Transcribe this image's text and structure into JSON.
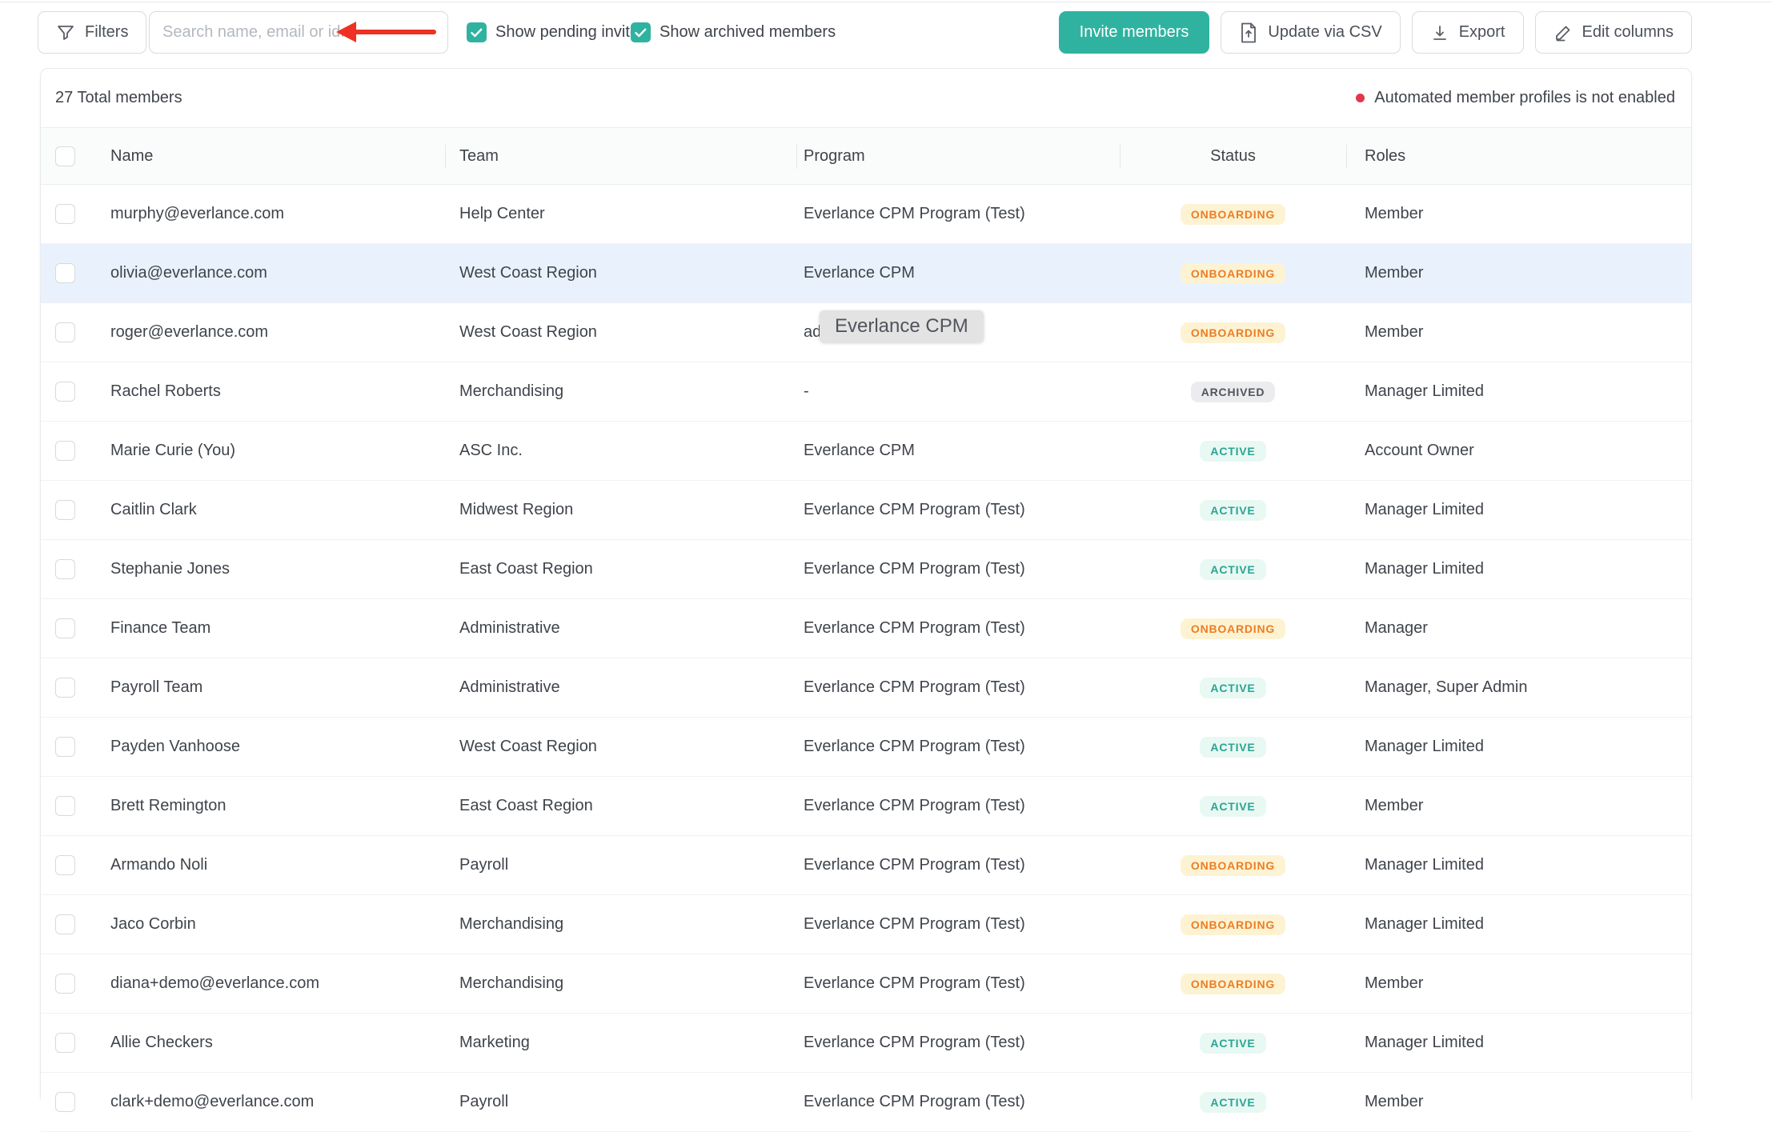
{
  "toolbar": {
    "filters_label": "Filters",
    "search_placeholder": "Search name, email or id...",
    "checkboxes": [
      {
        "label": "Show pending invites",
        "checked": true
      },
      {
        "label": "Show archived members",
        "checked": true
      }
    ],
    "invite_label": "Invite members",
    "update_csv_label": "Update via CSV",
    "export_label": "Export",
    "edit_columns_label": "Edit columns"
  },
  "summary": {
    "total_label": "27 Total members",
    "notice_text": "Automated member profiles is not enabled"
  },
  "tooltip": {
    "text": "Everlance CPM"
  },
  "table": {
    "columns": [
      "Name",
      "Team",
      "Program",
      "Status",
      "Roles"
    ],
    "rows": [
      {
        "name": "murphy@everlance.com",
        "team": "Help Center",
        "program": "Everlance CPM Program (Test)",
        "status": "ONBOARDING",
        "status_type": "onboarding",
        "roles": "Member",
        "highlighted": false
      },
      {
        "name": "olivia@everlance.com",
        "team": "West Coast Region",
        "program": "Everlance CPM",
        "status": "ONBOARDING",
        "status_type": "onboarding",
        "roles": "Member",
        "highlighted": true
      },
      {
        "name": "roger@everlance.com",
        "team": "West Coast Region",
        "program": "adeM",
        "status": "ONBOARDING",
        "status_type": "onboarding",
        "roles": "Member",
        "highlighted": false
      },
      {
        "name": "Rachel Roberts",
        "team": "Merchandising",
        "program": "-",
        "status": "ARCHIVED",
        "status_type": "archived",
        "roles": "Manager Limited",
        "highlighted": false
      },
      {
        "name": "Marie Curie (You)",
        "team": "ASC Inc.",
        "program": "Everlance CPM",
        "status": "ACTIVE",
        "status_type": "active",
        "roles": "Account Owner",
        "highlighted": false
      },
      {
        "name": "Caitlin Clark",
        "team": "Midwest Region",
        "program": "Everlance CPM Program (Test)",
        "status": "ACTIVE",
        "status_type": "active",
        "roles": "Manager Limited",
        "highlighted": false
      },
      {
        "name": "Stephanie Jones",
        "team": "East Coast Region",
        "program": "Everlance CPM Program (Test)",
        "status": "ACTIVE",
        "status_type": "active",
        "roles": "Manager Limited",
        "highlighted": false
      },
      {
        "name": "Finance Team",
        "team": "Administrative",
        "program": "Everlance CPM Program (Test)",
        "status": "ONBOARDING",
        "status_type": "onboarding",
        "roles": "Manager",
        "highlighted": false
      },
      {
        "name": "Payroll Team",
        "team": "Administrative",
        "program": "Everlance CPM Program (Test)",
        "status": "ACTIVE",
        "status_type": "active",
        "roles": "Manager, Super Admin",
        "highlighted": false
      },
      {
        "name": "Payden Vanhoose",
        "team": "West Coast Region",
        "program": "Everlance CPM Program (Test)",
        "status": "ACTIVE",
        "status_type": "active",
        "roles": "Manager Limited",
        "highlighted": false
      },
      {
        "name": "Brett Remington",
        "team": "East Coast Region",
        "program": "Everlance CPM Program (Test)",
        "status": "ACTIVE",
        "status_type": "active",
        "roles": "Member",
        "highlighted": false
      },
      {
        "name": "Armando Noli",
        "team": "Payroll",
        "program": "Everlance CPM Program (Test)",
        "status": "ONBOARDING",
        "status_type": "onboarding",
        "roles": "Manager Limited",
        "highlighted": false
      },
      {
        "name": "Jaco Corbin",
        "team": "Merchandising",
        "program": "Everlance CPM Program (Test)",
        "status": "ONBOARDING",
        "status_type": "onboarding",
        "roles": "Manager Limited",
        "highlighted": false
      },
      {
        "name": "diana+demo@everlance.com",
        "team": "Merchandising",
        "program": "Everlance CPM Program (Test)",
        "status": "ONBOARDING",
        "status_type": "onboarding",
        "roles": "Member",
        "highlighted": false
      },
      {
        "name": "Allie Checkers",
        "team": "Marketing",
        "program": "Everlance CPM Program (Test)",
        "status": "ACTIVE",
        "status_type": "active",
        "roles": "Manager Limited",
        "highlighted": false
      },
      {
        "name": "clark+demo@everlance.com",
        "team": "Payroll",
        "program": "Everlance CPM Program (Test)",
        "status": "ACTIVE",
        "status_type": "active",
        "roles": "Member",
        "highlighted": false
      }
    ]
  },
  "colors": {
    "accent_teal": "#2fb3a0",
    "arrow_red": "#ee3124",
    "notice_dot_red": "#e2374b",
    "onboarding_text": "#ed7d23",
    "onboarding_bg": "#fdf3d3",
    "active_text": "#2aa492",
    "active_bg": "#e8f8f3",
    "archived_text": "#50555c",
    "archived_bg": "#ececee",
    "row_highlight": "#e9f2fc"
  }
}
